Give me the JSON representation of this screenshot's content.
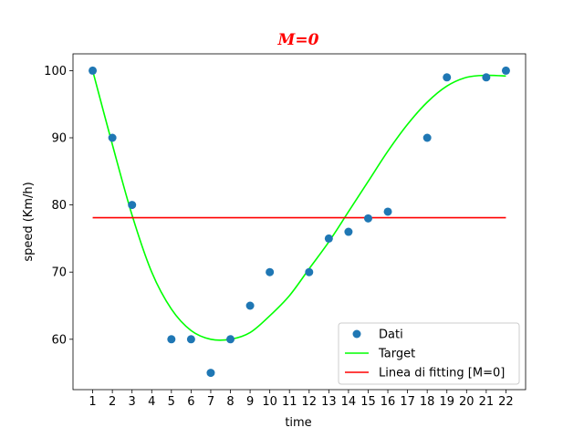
{
  "chart_data": {
    "type": "scatter",
    "title": "M=0",
    "title_color": "#ff0000",
    "xlabel": "time",
    "ylabel": "speed (Km/h)",
    "xlim": [
      0.0,
      23.0
    ],
    "ylim": [
      52.5,
      102.5
    ],
    "x_ticks": [
      1,
      2,
      3,
      4,
      5,
      6,
      7,
      8,
      9,
      10,
      11,
      12,
      13,
      14,
      15,
      16,
      17,
      18,
      19,
      20,
      21,
      22
    ],
    "y_ticks": [
      60,
      70,
      80,
      90,
      100
    ],
    "grid": false,
    "legend_position": "lower-right",
    "series": [
      {
        "name": "Dati",
        "kind": "scatter",
        "color": "#1f77b4",
        "x": [
          1,
          2,
          3,
          5,
          6,
          7,
          8,
          9,
          10,
          12,
          13,
          14,
          15,
          16,
          18,
          19,
          21,
          22
        ],
        "y": [
          100,
          90,
          80,
          60,
          60,
          55,
          60,
          65,
          70,
          70,
          75,
          76,
          78,
          79,
          90,
          99,
          99,
          100
        ]
      },
      {
        "name": "Target",
        "kind": "line",
        "color": "#00ff00",
        "x": [
          1,
          2,
          3,
          4,
          5,
          6,
          7,
          8,
          9,
          10,
          11,
          12,
          13,
          14,
          15,
          16,
          17,
          18,
          19,
          20,
          21,
          22
        ],
        "y": [
          100,
          89,
          78.5,
          70,
          64.5,
          61.3,
          60,
          60,
          61,
          63.5,
          66.5,
          70.5,
          74.5,
          79,
          83.5,
          88,
          92,
          95.3,
          97.7,
          99,
          99.3,
          99.2
        ]
      },
      {
        "name": "Linea di fitting [M=0]",
        "kind": "line",
        "color": "#ff0000",
        "x": [
          1,
          22
        ],
        "y": [
          78.1,
          78.1
        ]
      }
    ]
  }
}
